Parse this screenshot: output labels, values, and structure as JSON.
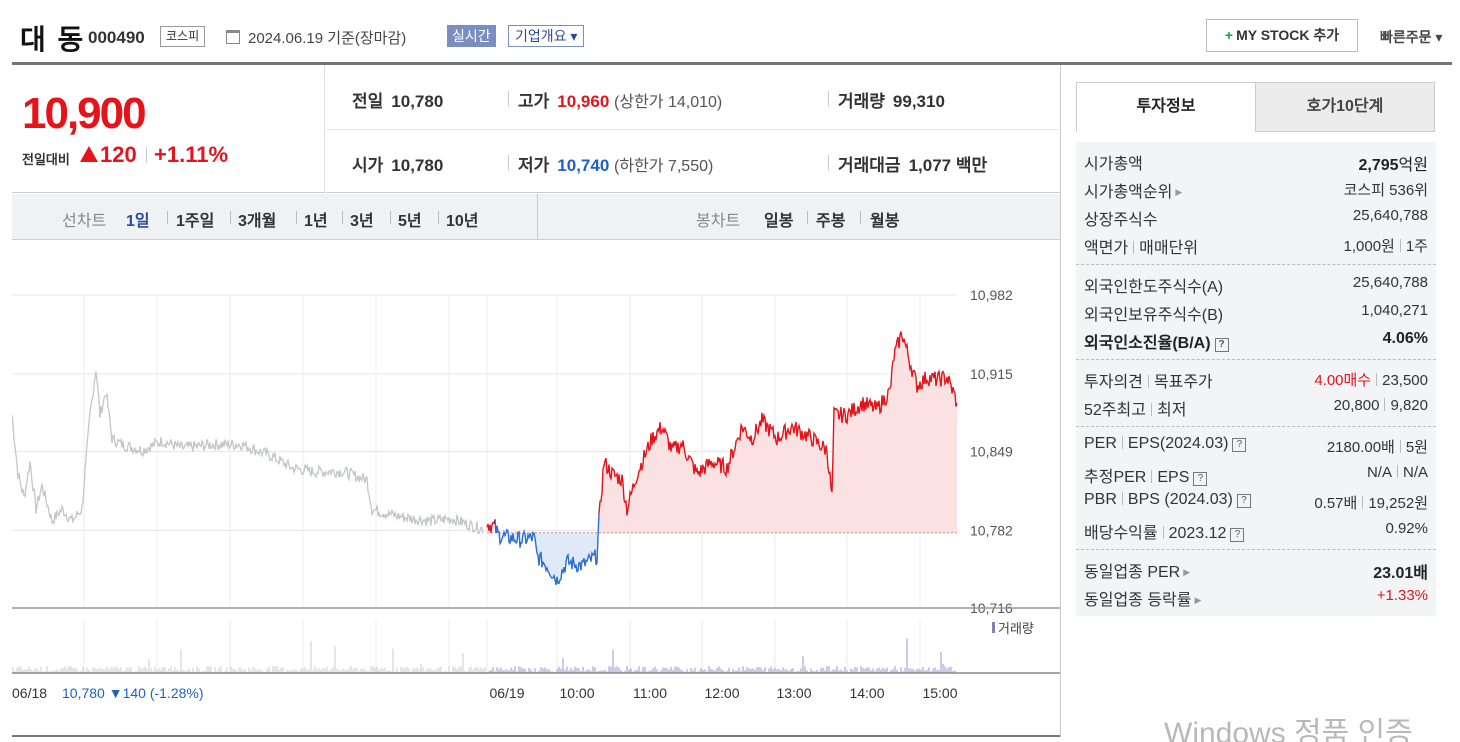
{
  "header": {
    "title": "대 동",
    "code": "000490",
    "market": "코스피",
    "date": "2024.06.19 기준(장마감)",
    "realtime": "실시간",
    "company": "기업개요 ▾",
    "mystock": "MY STOCK 추가",
    "mystock_plus": "+",
    "quick_order": "빠른주문 ▾"
  },
  "price": {
    "current": "10,900",
    "change_label": "전일대비",
    "change": "120",
    "change_pct": "+1.11%"
  },
  "stats": {
    "prev_label": "전일",
    "prev": "10,780",
    "high_label": "고가",
    "high": "10,960",
    "upper": "(상한가 14,010)",
    "volume_label": "거래량",
    "volume": "99,310",
    "open_label": "시가",
    "open": "10,780",
    "low_label": "저가",
    "low": "10,740",
    "lower": "(하한가 7,550)",
    "amount_label": "거래대금",
    "amount": "1,077",
    "amount_unit": "백만"
  },
  "period": {
    "line_label": "선차트",
    "items": [
      "1일",
      "1주일",
      "3개월",
      "1년",
      "3년",
      "5년",
      "10년"
    ],
    "candle_label": "봉차트",
    "candle_items": [
      "일봉",
      "주봉",
      "월봉"
    ]
  },
  "chart_data": {
    "type": "line",
    "y_ticks": [
      "10,982",
      "10,915",
      "10,849",
      "10,782",
      "10,716"
    ],
    "ylim": [
      10716,
      10982
    ],
    "baseline": 10780,
    "x_ticks": [
      "06/19",
      "10:00",
      "11:00",
      "12:00",
      "13:00",
      "14:00",
      "15:00"
    ],
    "prev_day_label": "06/18",
    "prev_day_info": "10,780 ▼140 (-1.28%)",
    "volume_label": "거래량"
  },
  "tabs": {
    "info": "투자정보",
    "orderbook": "호가10단계"
  },
  "invest": {
    "g1": [
      {
        "k": "시가총액",
        "v": "2,795",
        "vu": "억원"
      },
      {
        "k": "시가총액순위",
        "v": "코스피 536위"
      },
      {
        "k": "상장주식수",
        "v": "25,640,788"
      },
      {
        "k": "액면가",
        "k2": "매매단위",
        "v": "1,000원",
        "v2": "1주"
      }
    ],
    "g2": [
      {
        "k": "외국인한도주식수(A)",
        "v": "25,640,788"
      },
      {
        "k": "외국인보유주식수(B)",
        "v": "1,040,271"
      },
      {
        "k": "외국인소진율(B/A)",
        "v": "4.06%"
      }
    ],
    "g3": [
      {
        "k": "투자의견",
        "k2": "목표주가",
        "v": "4.00매수",
        "v2": "23,500"
      },
      {
        "k": "52주최고",
        "k2": "최저",
        "v": "20,800",
        "v2": "9,820"
      }
    ],
    "g4": [
      {
        "k": "PER",
        "k2": "EPS(2024.03)",
        "v": "2180.00배",
        "v2": "5원"
      },
      {
        "k": "추정PER",
        "k2": "EPS",
        "v": "N/A",
        "v2": "N/A"
      },
      {
        "k": "PBR",
        "k2": "BPS (2024.03)",
        "v": "0.57배",
        "v2": "19,252원"
      },
      {
        "k": "배당수익률",
        "k2": "2023.12",
        "v": "0.92%"
      }
    ],
    "g5": [
      {
        "k": "동일업종 PER",
        "v": "23.01배"
      },
      {
        "k": "동일업종 등락률",
        "v": "+1.33%"
      }
    ]
  },
  "watermark": "Windows 정품 인증"
}
